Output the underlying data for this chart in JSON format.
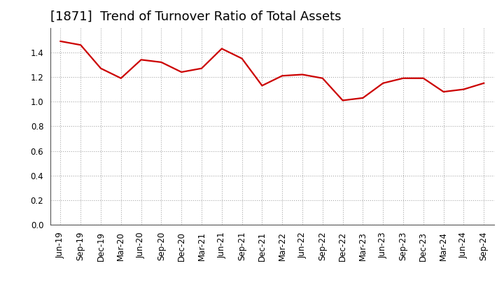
{
  "title": "[1871]  Trend of Turnover Ratio of Total Assets",
  "labels": [
    "Jun-19",
    "Sep-19",
    "Dec-19",
    "Mar-20",
    "Jun-20",
    "Sep-20",
    "Dec-20",
    "Mar-21",
    "Jun-21",
    "Sep-21",
    "Dec-21",
    "Mar-22",
    "Jun-22",
    "Sep-22",
    "Dec-22",
    "Mar-23",
    "Jun-23",
    "Sep-23",
    "Dec-23",
    "Mar-24",
    "Jun-24",
    "Sep-24"
  ],
  "values": [
    1.49,
    1.46,
    1.27,
    1.19,
    1.34,
    1.32,
    1.24,
    1.27,
    1.43,
    1.35,
    1.13,
    1.21,
    1.22,
    1.19,
    1.01,
    1.03,
    1.15,
    1.19,
    1.19,
    1.08,
    1.1,
    1.15
  ],
  "line_color": "#cc0000",
  "line_width": 1.6,
  "ylim": [
    0.0,
    1.6
  ],
  "yticks": [
    0.0,
    0.2,
    0.4,
    0.6,
    0.8,
    1.0,
    1.2,
    1.4
  ],
  "grid_color": "#aaaaaa",
  "bg_color": "#ffffff",
  "title_fontsize": 13,
  "tick_fontsize": 8.5
}
